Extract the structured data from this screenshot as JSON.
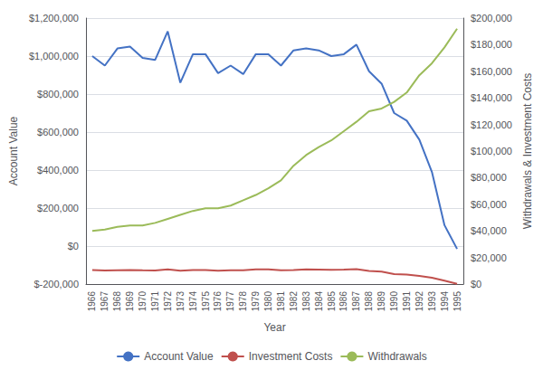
{
  "chart_data": {
    "type": "line",
    "x": [
      1966,
      1967,
      1968,
      1969,
      1970,
      1971,
      1972,
      1973,
      1974,
      1975,
      1976,
      1977,
      1978,
      1979,
      1980,
      1981,
      1982,
      1983,
      1984,
      1985,
      1986,
      1987,
      1988,
      1989,
      1990,
      1991,
      1992,
      1993,
      1994,
      1995
    ],
    "xlim": [
      1965.5,
      1995.5
    ],
    "xticks": [
      1966,
      1967,
      1968,
      1969,
      1970,
      1971,
      1972,
      1973,
      1974,
      1975,
      1976,
      1977,
      1978,
      1979,
      1980,
      1981,
      1982,
      1983,
      1984,
      1985,
      1986,
      1987,
      1988,
      1989,
      1990,
      1991,
      1992,
      1993,
      1994,
      1995
    ],
    "xlabel": "Year",
    "ylabel": "Account Value",
    "y2label": "Withdrawals & Investment Costs",
    "ylim": [
      -200000,
      1200000
    ],
    "yticks": [
      {
        "value": -200000,
        "label": "$-200,000"
      },
      {
        "value": 0,
        "label": "$0"
      },
      {
        "value": 200000,
        "label": "$200,000"
      },
      {
        "value": 400000,
        "label": "$400,000"
      },
      {
        "value": 600000,
        "label": "$600,000"
      },
      {
        "value": 800000,
        "label": "$800,000"
      },
      {
        "value": 1000000,
        "label": "$1,000,000"
      },
      {
        "value": 1200000,
        "label": "$1,200,000"
      }
    ],
    "y2lim": [
      0,
      200000
    ],
    "y2ticks": [
      {
        "value": 0,
        "label": "$0"
      },
      {
        "value": 20000,
        "label": "$20,000"
      },
      {
        "value": 40000,
        "label": "$40,000"
      },
      {
        "value": 60000,
        "label": "$60,000"
      },
      {
        "value": 80000,
        "label": "$80,000"
      },
      {
        "value": 100000,
        "label": "$100,000"
      },
      {
        "value": 120000,
        "label": "$120,000"
      },
      {
        "value": 140000,
        "label": "$140,000"
      },
      {
        "value": 160000,
        "label": "$160,000"
      },
      {
        "value": 180000,
        "label": "$180,000"
      },
      {
        "value": 200000,
        "label": "$200,000"
      }
    ],
    "grid": true,
    "legend": "bottom",
    "series": [
      {
        "name": "Account Value",
        "color": "#4472C4",
        "values": [
          1000000,
          950000,
          1040000,
          1050000,
          990000,
          980000,
          1130000,
          860000,
          1010000,
          1010000,
          910000,
          950000,
          905000,
          1010000,
          1010000,
          950000,
          1030000,
          1040000,
          1030000,
          1000000,
          1010000,
          1060000,
          920000,
          855000,
          700000,
          660000,
          560000,
          390000,
          110000,
          -15000
        ]
      },
      {
        "name": "Investment Costs",
        "color": "#C0504D",
        "axis": "y2",
        "values": [
          10500,
          10200,
          10400,
          10500,
          10300,
          10200,
          11000,
          10000,
          10600,
          10600,
          10000,
          10300,
          10400,
          11000,
          11000,
          10400,
          10500,
          11000,
          10900,
          10700,
          10800,
          11200,
          9800,
          9400,
          7500,
          7200,
          6200,
          4800,
          2500,
          200
        ]
      },
      {
        "name": "Withdrawals",
        "color": "#9BBB59",
        "axis": "y2",
        "values": [
          40000,
          41000,
          43000,
          44000,
          44000,
          46000,
          49000,
          52000,
          55000,
          57000,
          57000,
          59000,
          63000,
          67000,
          72000,
          78000,
          89000,
          97000,
          103000,
          108000,
          115000,
          122000,
          130000,
          132000,
          137000,
          144000,
          157000,
          166000,
          178000,
          192000
        ]
      }
    ]
  }
}
